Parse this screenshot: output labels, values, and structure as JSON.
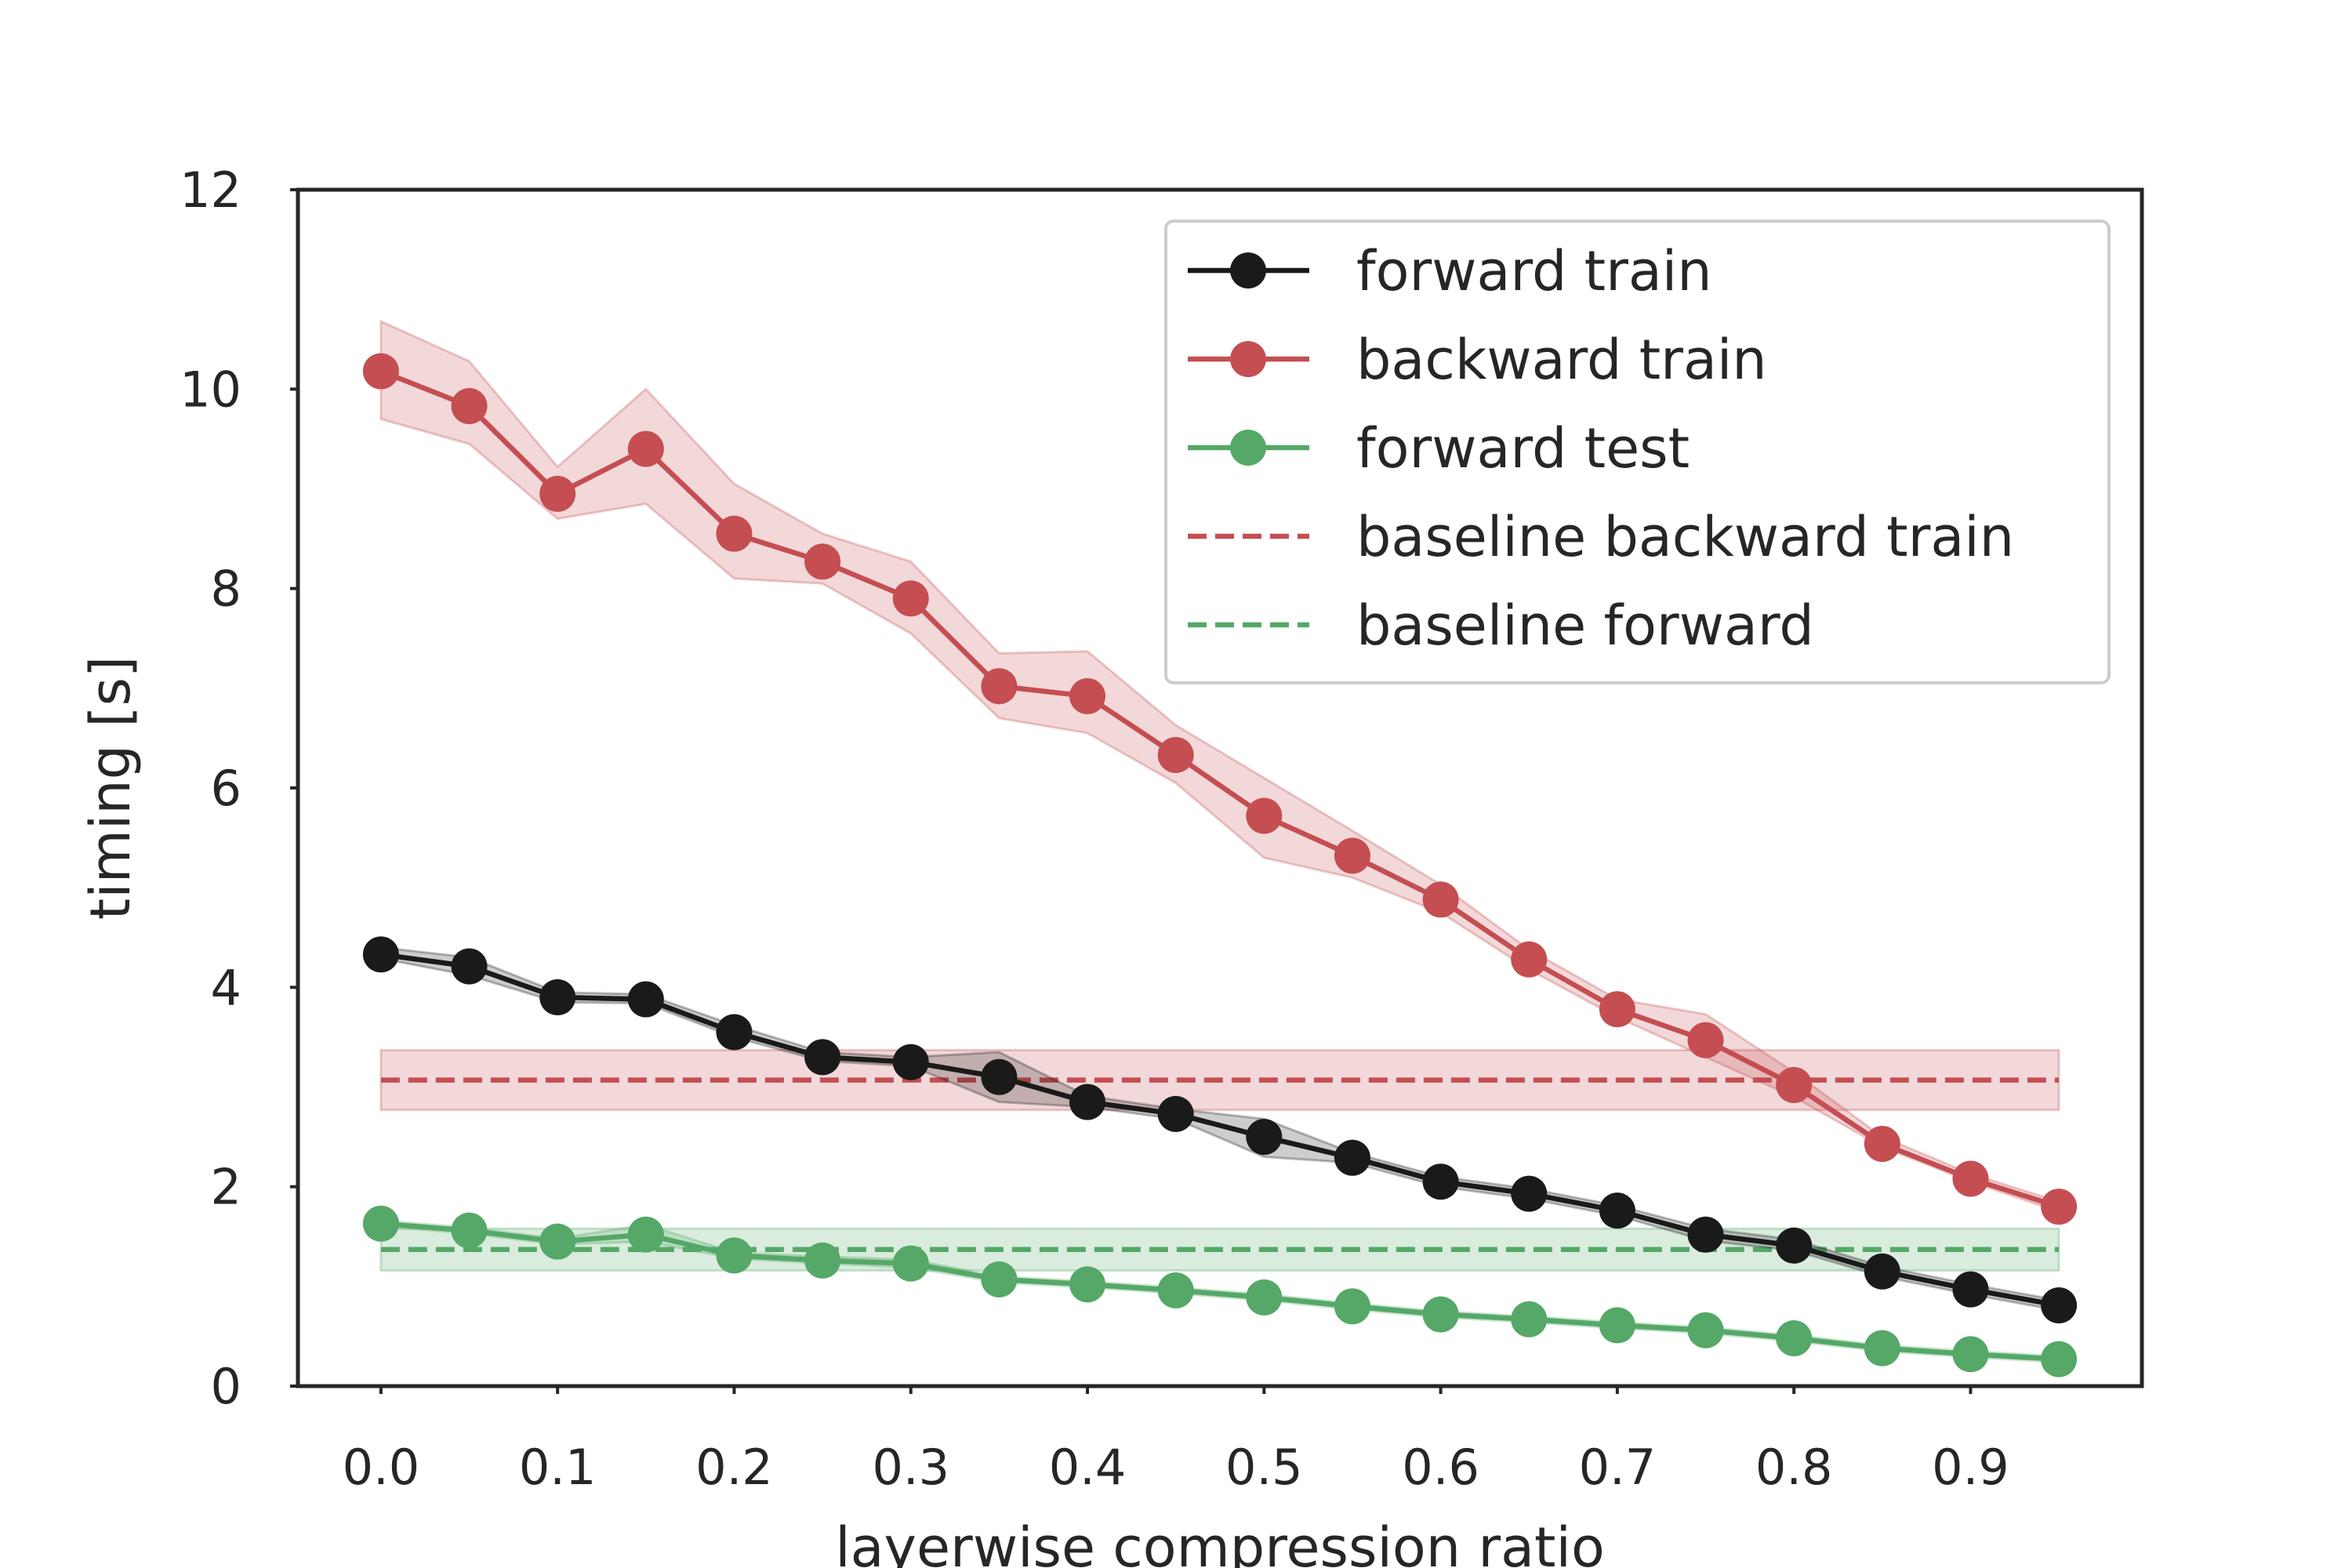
{
  "chart_data": {
    "type": "line",
    "title": "",
    "xlabel": "layerwise compression ratio",
    "ylabel": "timing [s]",
    "xlim": [
      -0.047,
      0.997
    ],
    "ylim": [
      0,
      12
    ],
    "xticks": [
      0.0,
      0.1,
      0.2,
      0.3,
      0.4,
      0.5,
      0.6,
      0.7,
      0.8,
      0.9
    ],
    "xtick_labels": [
      "0.0",
      "0.1",
      "0.2",
      "0.3",
      "0.4",
      "0.5",
      "0.6",
      "0.7",
      "0.8",
      "0.9"
    ],
    "yticks": [
      0,
      2,
      4,
      6,
      8,
      10,
      12
    ],
    "ytick_labels": [
      "0",
      "2",
      "4",
      "6",
      "8",
      "10",
      "12"
    ],
    "grid": false,
    "legend_position": "top-right",
    "x": [
      0.0,
      0.05,
      0.1,
      0.15,
      0.2,
      0.25,
      0.3,
      0.35,
      0.4,
      0.45,
      0.5,
      0.55,
      0.6,
      0.65,
      0.7,
      0.75,
      0.8,
      0.85,
      0.9,
      0.95
    ],
    "series": [
      {
        "name": "forward train",
        "color": "#1a1a1a",
        "style": "solid-marker",
        "values": [
          4.33,
          4.21,
          3.9,
          3.88,
          3.55,
          3.3,
          3.25,
          3.1,
          2.85,
          2.73,
          2.5,
          2.29,
          2.05,
          1.93,
          1.76,
          1.52,
          1.41,
          1.15,
          0.97,
          0.81
        ],
        "band_low": [
          4.29,
          4.12,
          3.85,
          3.84,
          3.5,
          3.26,
          3.21,
          2.85,
          2.8,
          2.68,
          2.3,
          2.24,
          2.0,
          1.88,
          1.71,
          1.46,
          1.36,
          1.1,
          0.92,
          0.76
        ],
        "band_high": [
          4.4,
          4.3,
          3.95,
          3.93,
          3.62,
          3.35,
          3.3,
          3.35,
          2.91,
          2.78,
          2.68,
          2.34,
          2.1,
          1.98,
          1.81,
          1.58,
          1.47,
          1.2,
          1.02,
          0.86
        ]
      },
      {
        "name": "backward train",
        "color": "#c44e52",
        "style": "solid-marker",
        "values": [
          10.18,
          9.83,
          8.95,
          9.4,
          8.55,
          8.27,
          7.9,
          7.02,
          6.92,
          6.33,
          5.72,
          5.32,
          4.88,
          4.28,
          3.78,
          3.47,
          3.02,
          2.43,
          2.08,
          1.8
        ],
        "band_low": [
          9.7,
          9.45,
          8.7,
          8.85,
          8.1,
          8.05,
          7.55,
          6.7,
          6.55,
          6.05,
          5.3,
          5.1,
          4.75,
          4.18,
          3.7,
          3.3,
          2.9,
          2.4,
          2.05,
          1.75
        ],
        "band_high": [
          10.68,
          10.28,
          9.22,
          10.0,
          9.05,
          8.55,
          8.27,
          7.35,
          7.37,
          6.63,
          6.1,
          5.57,
          5.03,
          4.38,
          3.88,
          3.73,
          3.15,
          2.5,
          2.13,
          1.85
        ]
      },
      {
        "name": "forward test",
        "color": "#55a868",
        "style": "solid-marker",
        "values": [
          1.63,
          1.56,
          1.45,
          1.52,
          1.31,
          1.26,
          1.23,
          1.07,
          1.02,
          0.96,
          0.89,
          0.8,
          0.72,
          0.67,
          0.61,
          0.56,
          0.48,
          0.38,
          0.32,
          0.27
        ],
        "band_low": [
          1.6,
          1.53,
          1.42,
          1.45,
          1.28,
          1.23,
          1.19,
          1.04,
          0.99,
          0.93,
          0.86,
          0.77,
          0.69,
          0.64,
          0.58,
          0.53,
          0.45,
          0.35,
          0.29,
          0.24
        ],
        "band_high": [
          1.66,
          1.59,
          1.48,
          1.62,
          1.34,
          1.3,
          1.27,
          1.1,
          1.05,
          0.99,
          0.92,
          0.83,
          0.75,
          0.7,
          0.64,
          0.59,
          0.51,
          0.41,
          0.35,
          0.3
        ]
      },
      {
        "name": "baseline backward train",
        "color": "#c44e52",
        "style": "dashed",
        "value": 3.07,
        "band": [
          2.77,
          3.37
        ],
        "x_range": [
          0.0,
          0.95
        ]
      },
      {
        "name": "baseline forward",
        "color": "#55a868",
        "style": "dashed",
        "value": 1.37,
        "band": [
          1.16,
          1.58
        ],
        "x_range": [
          0.0,
          0.95
        ]
      }
    ]
  }
}
